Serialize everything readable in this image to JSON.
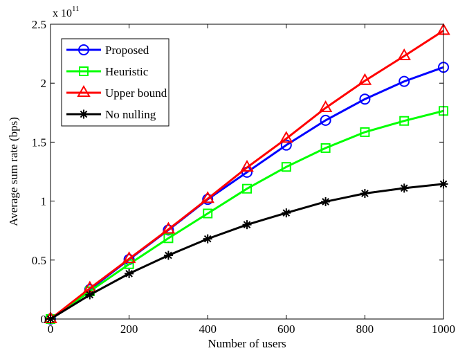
{
  "chart_data": {
    "type": "line",
    "title": "",
    "xlabel": "Number of users",
    "ylabel": "Average sum rate (bps)",
    "y_multiplier": {
      "base": "x 10",
      "exponent": "11"
    },
    "xlim": [
      0,
      1000
    ],
    "ylim": [
      0,
      2.5
    ],
    "xticks": [
      0,
      200,
      400,
      600,
      800,
      1000
    ],
    "yticks": [
      0,
      0.5,
      1,
      1.5,
      2,
      2.5
    ],
    "xtick_labels": [
      "0",
      "200",
      "400",
      "600",
      "800",
      "1000"
    ],
    "ytick_labels": [
      "0",
      "0.5",
      "1",
      "1.5",
      "2",
      "2.5"
    ],
    "grid": false,
    "legend_position": "top-left",
    "x": [
      0,
      100,
      200,
      300,
      400,
      500,
      600,
      700,
      800,
      900,
      1000
    ],
    "series": [
      {
        "name": "Proposed",
        "color": "#0000ff",
        "marker": "circle",
        "values": [
          0,
          0.25,
          0.505,
          0.755,
          1.015,
          1.245,
          1.475,
          1.685,
          1.865,
          2.015,
          2.135
        ]
      },
      {
        "name": "Heuristic",
        "color": "#00ff00",
        "marker": "square",
        "values": [
          0,
          0.235,
          0.465,
          0.685,
          0.895,
          1.105,
          1.29,
          1.45,
          1.585,
          1.68,
          1.765
        ]
      },
      {
        "name": "Upper bound",
        "color": "#ff0000",
        "marker": "triangle",
        "values": [
          0,
          0.26,
          0.51,
          0.76,
          1.02,
          1.285,
          1.53,
          1.79,
          2.02,
          2.23,
          2.445
        ]
      },
      {
        "name": "No nulling",
        "color": "#000000",
        "marker": "star",
        "values": [
          0,
          0.205,
          0.385,
          0.54,
          0.68,
          0.8,
          0.9,
          0.995,
          1.065,
          1.11,
          1.145
        ]
      }
    ]
  }
}
